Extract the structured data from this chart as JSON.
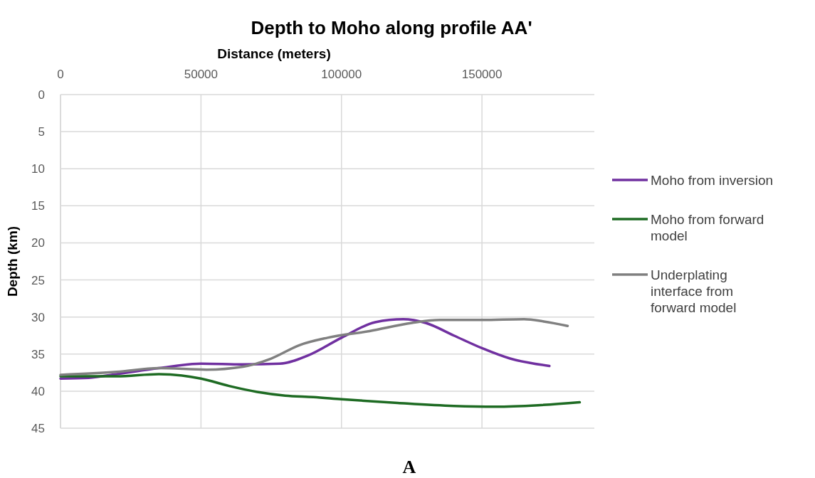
{
  "chart_data": {
    "type": "line",
    "title": "Depth to Moho along profile AA'",
    "xlabel": "Distance (meters)",
    "ylabel": "Depth (km)",
    "xlim": [
      0,
      190000
    ],
    "xticks": [
      0,
      50000,
      100000,
      150000
    ],
    "ylim": [
      45,
      0
    ],
    "yticks": [
      0,
      5,
      10,
      15,
      20,
      25,
      30,
      35,
      40,
      45
    ],
    "grid": true,
    "legend": "right",
    "annotations": [
      "A"
    ],
    "series": [
      {
        "name": "Moho from inversion",
        "color": "#7030a0",
        "x": [
          0,
          10000,
          20000,
          35000,
          50000,
          65000,
          78000,
          88000,
          100000,
          112000,
          122000,
          130000,
          140000,
          150000,
          160000,
          174000
        ],
        "values": [
          38.3,
          38.2,
          37.7,
          36.9,
          36.3,
          36.4,
          36.3,
          35.2,
          32.8,
          30.7,
          30.3,
          30.8,
          32.5,
          34.2,
          35.6,
          36.6
        ]
      },
      {
        "name": "Moho from forward model",
        "color": "#1e6b23",
        "x": [
          0,
          20000,
          35000,
          50000,
          60000,
          70000,
          80000,
          90000,
          100000,
          120000,
          140000,
          155000,
          170000,
          184800
        ],
        "values": [
          38.0,
          38.0,
          37.7,
          38.3,
          39.3,
          40.1,
          40.6,
          40.8,
          41.1,
          41.6,
          42.0,
          42.1,
          41.9,
          41.5
        ]
      },
      {
        "name": "Underplating interface from forward model",
        "color": "#808080",
        "x": [
          0,
          20000,
          35000,
          52000,
          65000,
          75000,
          85000,
          95000,
          110000,
          125000,
          135000,
          150000,
          165000,
          172000,
          180500
        ],
        "values": [
          37.8,
          37.4,
          36.9,
          37.1,
          36.7,
          35.6,
          33.8,
          32.8,
          31.9,
          30.8,
          30.4,
          30.4,
          30.3,
          30.6,
          31.2
        ]
      }
    ]
  }
}
